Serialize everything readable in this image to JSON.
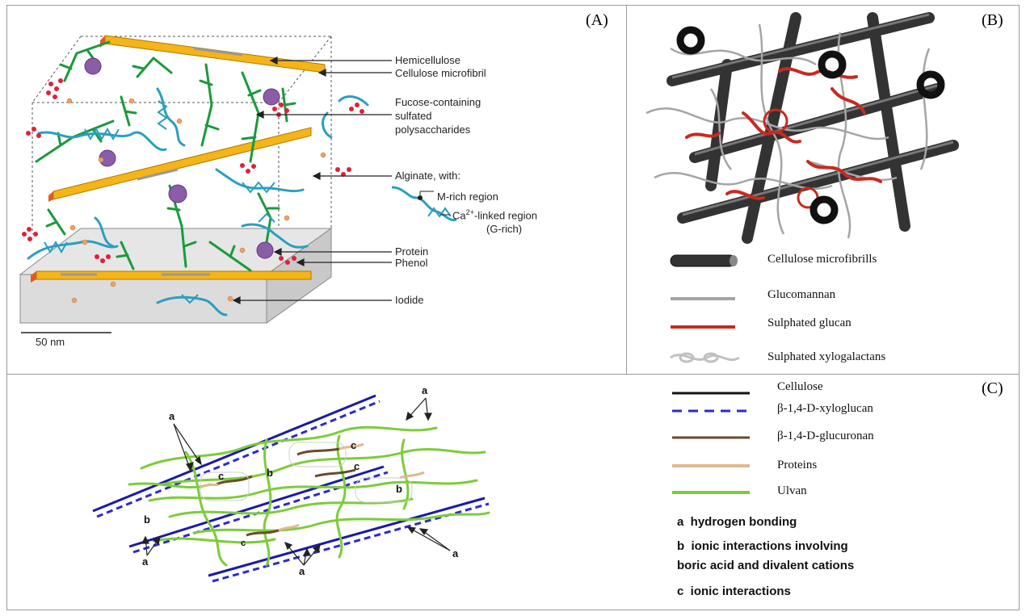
{
  "panels": {
    "a": {
      "label": "(A)",
      "labels": {
        "hemicellulose": "Hemicellulose",
        "cellulose_microfibril": "Cellulose microfibril",
        "fucose_line1": "Fucose-containing",
        "fucose_line2": "sulfated",
        "fucose_line3": "polysaccharides",
        "alginate": "Alginate, with:",
        "m_rich": "M-rich region",
        "ca_linked_pre": "Ca",
        "ca_sup": "2+",
        "ca_linked_post": "-linked region",
        "g_rich": "(G-rich)",
        "protein": "Protein",
        "phenol": "Phenol",
        "iodide": "Iodide",
        "scale": "50 nm"
      }
    },
    "b": {
      "label": "(B)",
      "legend": [
        "Cellulose microfibrills",
        "Glucomannan",
        "Sulphated glucan",
        "Sulphated xylogalactans"
      ]
    },
    "c": {
      "label": "(C)",
      "legend": [
        "Cellulose",
        "β-1,4-D-xyloglucan",
        "β-1,4-D-glucuronan",
        "Proteins",
        "Ulvan"
      ],
      "interactions": [
        "a  hydrogen bonding",
        "b  ionic interactions involving",
        "boric acid and divalent cations",
        "c  ionic interactions"
      ],
      "markers": {
        "a": "a",
        "b": "b",
        "c": "c"
      }
    }
  },
  "colors": {
    "gold": "#f5b417",
    "green": "#1a9a3c",
    "blue": "#2a9fc0",
    "purple": "#8b5ca8",
    "red": "#e0203a",
    "orange": "#f0a060",
    "ulvan": "#7ccc3a",
    "navy": "#1a1aa8",
    "brown": "#6a4a2a",
    "protein": "#e0b890",
    "sulph": "#c82a20"
  }
}
